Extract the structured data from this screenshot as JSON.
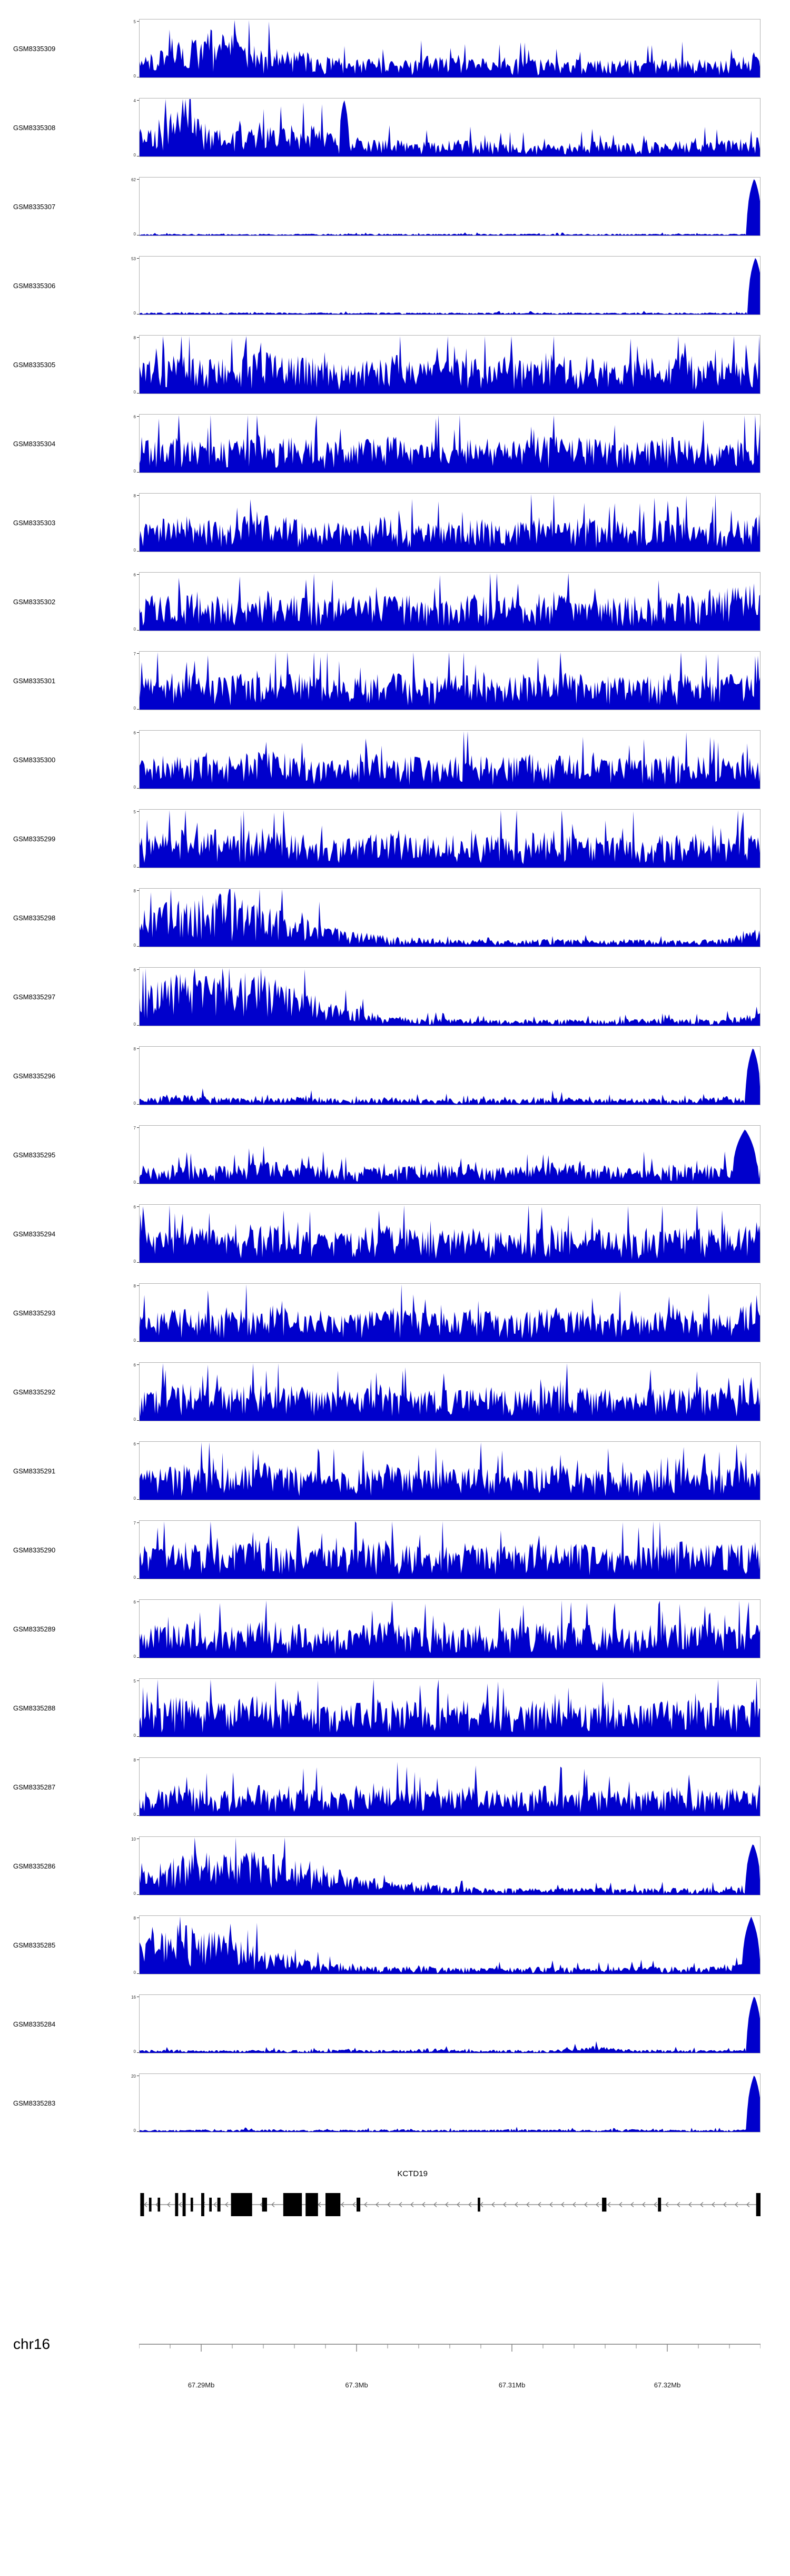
{
  "colors": {
    "signal": "#0000CC",
    "panel_border": "#b0b0b0",
    "yaxis_text": "#333333",
    "axis_line": "#808080",
    "tick_label": "#1a1a1a",
    "gene": "#000000",
    "intron": "#777777"
  },
  "chart_data": {
    "type": "area",
    "title": "",
    "description": "Genome browser coverage tracks for 27 GSM samples over chr16 67.29-67.32Mb with KCTD19 gene model",
    "region": {
      "chromosome": "chr16",
      "start_label": "67.29Mb",
      "end_label": "67.32Mb"
    },
    "x_axis": {
      "minor_tick_step": 0.05,
      "major_ticks": [
        {
          "pos": 0.1,
          "label": "67.29Mb"
        },
        {
          "pos": 0.35,
          "label": "67.3Mb"
        },
        {
          "pos": 0.6,
          "label": "67.31Mb"
        },
        {
          "pos": 0.85,
          "label": "67.32Mb"
        }
      ]
    },
    "gene_track": {
      "name": "KCTD19",
      "strand": "-",
      "exons": [
        {
          "x": 0.002,
          "w": 0.006,
          "h": 1
        },
        {
          "x": 0.016,
          "w": 0.004,
          "h": 0.6
        },
        {
          "x": 0.03,
          "w": 0.004,
          "h": 0.6
        },
        {
          "x": 0.058,
          "w": 0.005,
          "h": 1
        },
        {
          "x": 0.07,
          "w": 0.005,
          "h": 1
        },
        {
          "x": 0.083,
          "w": 0.004,
          "h": 0.6
        },
        {
          "x": 0.1,
          "w": 0.005,
          "h": 1
        },
        {
          "x": 0.113,
          "w": 0.004,
          "h": 0.6
        },
        {
          "x": 0.126,
          "w": 0.005,
          "h": 0.6
        },
        {
          "x": 0.148,
          "w": 0.034,
          "h": 1
        },
        {
          "x": 0.198,
          "w": 0.008,
          "h": 0.6
        },
        {
          "x": 0.232,
          "w": 0.03,
          "h": 1
        },
        {
          "x": 0.268,
          "w": 0.02,
          "h": 1
        },
        {
          "x": 0.3,
          "w": 0.024,
          "h": 1
        },
        {
          "x": 0.35,
          "w": 0.006,
          "h": 0.6
        },
        {
          "x": 0.545,
          "w": 0.004,
          "h": 0.6
        },
        {
          "x": 0.745,
          "w": 0.007,
          "h": 0.6
        },
        {
          "x": 0.835,
          "w": 0.005,
          "h": 0.6
        },
        {
          "x": 0.993,
          "w": 0.007,
          "h": 1
        }
      ]
    },
    "tracks": [
      {
        "label": "GSM8335309",
        "ymin": "0",
        "ymax": "5",
        "seed": 11,
        "envelope": [
          0.35,
          0.6,
          0.9,
          0.55,
          0.45,
          0.35,
          0.3,
          0.38,
          0.32,
          0.36,
          0.3,
          0.34,
          0.3,
          0.36,
          0.32,
          0.4
        ],
        "spikes": []
      },
      {
        "label": "GSM8335308",
        "ymin": "0",
        "ymax": "4",
        "seed": 12,
        "envelope": [
          0.55,
          0.85,
          0.45,
          0.5,
          0.6,
          0.35,
          0.3,
          0.28,
          0.32,
          0.25,
          0.22,
          0.28,
          0.24,
          0.3,
          0.28,
          0.34
        ],
        "spikes": [
          {
            "x": 0.33,
            "h": 1.0,
            "w": 0.008
          }
        ]
      },
      {
        "label": "GSM8335307",
        "ymin": "0",
        "ymax": "62",
        "seed": 13,
        "envelope": [
          0.03,
          0.03,
          0.03,
          0.03,
          0.03,
          0.03,
          0.03,
          0.03,
          0.03,
          0.03,
          0.03,
          0.03,
          0.03,
          0.03,
          0.03,
          0.03
        ],
        "spikes": [
          {
            "x": 0.99,
            "h": 1.0,
            "w": 0.012
          }
        ]
      },
      {
        "label": "GSM8335306",
        "ymin": "0",
        "ymax": "53",
        "seed": 14,
        "envelope": [
          0.035,
          0.035,
          0.035,
          0.035,
          0.035,
          0.035,
          0.035,
          0.035,
          0.035,
          0.035,
          0.035,
          0.035,
          0.035,
          0.035,
          0.035,
          0.035
        ],
        "spikes": [
          {
            "x": 0.992,
            "h": 1.0,
            "w": 0.012
          }
        ]
      },
      {
        "label": "GSM8335305",
        "ymin": "0",
        "ymax": "8",
        "seed": 15,
        "envelope": [
          0.6,
          0.72,
          0.62,
          0.75,
          0.65,
          0.6,
          0.72,
          0.58,
          0.66,
          0.62,
          0.7,
          0.64,
          0.6,
          0.68,
          0.64,
          0.72
        ],
        "spikes": []
      },
      {
        "label": "GSM8335304",
        "ymin": "0",
        "ymax": "6",
        "seed": 16,
        "envelope": [
          0.55,
          0.65,
          0.58,
          0.7,
          0.6,
          0.55,
          0.65,
          0.55,
          0.62,
          0.58,
          0.66,
          0.6,
          0.55,
          0.64,
          0.58,
          0.66
        ],
        "spikes": []
      },
      {
        "label": "GSM8335303",
        "ymin": "0",
        "ymax": "8",
        "seed": 17,
        "envelope": [
          0.5,
          0.66,
          0.52,
          0.7,
          0.56,
          0.5,
          0.64,
          0.52,
          0.6,
          0.54,
          0.64,
          0.56,
          0.52,
          0.62,
          0.56,
          0.66
        ],
        "spikes": []
      },
      {
        "label": "GSM8335302",
        "ymin": "0",
        "ymax": "6",
        "seed": 18,
        "envelope": [
          0.55,
          0.7,
          0.6,
          0.72,
          0.62,
          0.58,
          0.7,
          0.56,
          0.64,
          0.6,
          0.68,
          0.62,
          0.58,
          0.66,
          0.72,
          0.85
        ],
        "spikes": []
      },
      {
        "label": "GSM8335301",
        "ymin": "0",
        "ymax": "7",
        "seed": 19,
        "envelope": [
          0.58,
          0.7,
          0.6,
          0.74,
          0.62,
          0.56,
          0.68,
          0.56,
          0.64,
          0.58,
          0.68,
          0.6,
          0.56,
          0.66,
          0.6,
          0.68
        ],
        "spikes": []
      },
      {
        "label": "GSM8335300",
        "ymin": "0",
        "ymax": "6",
        "seed": 20,
        "envelope": [
          0.52,
          0.64,
          0.55,
          0.68,
          0.58,
          0.52,
          0.64,
          0.52,
          0.6,
          0.55,
          0.64,
          0.56,
          0.52,
          0.62,
          0.55,
          0.6
        ],
        "spikes": []
      },
      {
        "label": "GSM8335299",
        "ymin": "0",
        "ymax": "5",
        "seed": 21,
        "envelope": [
          0.55,
          0.68,
          0.58,
          0.7,
          0.6,
          0.55,
          0.66,
          0.54,
          0.62,
          0.57,
          0.66,
          0.58,
          0.54,
          0.64,
          0.58,
          0.64
        ],
        "spikes": []
      },
      {
        "label": "GSM8335298",
        "ymin": "0",
        "ymax": "8",
        "seed": 22,
        "envelope": [
          0.55,
          0.9,
          0.95,
          0.75,
          0.5,
          0.32,
          0.2,
          0.15,
          0.12,
          0.12,
          0.14,
          0.12,
          0.13,
          0.12,
          0.14,
          0.3
        ],
        "spikes": []
      },
      {
        "label": "GSM8335297",
        "ymin": "0",
        "ymax": "6",
        "seed": 23,
        "envelope": [
          0.65,
          0.95,
          0.85,
          0.9,
          0.6,
          0.35,
          0.18,
          0.14,
          0.12,
          0.11,
          0.12,
          0.11,
          0.12,
          0.13,
          0.12,
          0.25
        ],
        "spikes": []
      },
      {
        "label": "GSM8335296",
        "ymin": "0",
        "ymax": "8",
        "seed": 24,
        "envelope": [
          0.12,
          0.18,
          0.14,
          0.1,
          0.16,
          0.1,
          0.14,
          0.1,
          0.12,
          0.1,
          0.14,
          0.1,
          0.12,
          0.1,
          0.14,
          0.18
        ],
        "spikes": [
          {
            "x": 0.988,
            "h": 1.0,
            "w": 0.012
          }
        ]
      },
      {
        "label": "GSM8335295",
        "ymin": "0",
        "ymax": "7",
        "seed": 25,
        "envelope": [
          0.3,
          0.36,
          0.32,
          0.4,
          0.34,
          0.3,
          0.38,
          0.32,
          0.36,
          0.3,
          0.38,
          0.34,
          0.3,
          0.36,
          0.34,
          0.42
        ],
        "spikes": [
          {
            "x": 0.975,
            "h": 0.95,
            "w": 0.02
          }
        ]
      },
      {
        "label": "GSM8335294",
        "ymin": "0",
        "ymax": "6",
        "seed": 26,
        "envelope": [
          0.55,
          0.68,
          0.58,
          0.72,
          0.6,
          0.56,
          0.68,
          0.55,
          0.63,
          0.58,
          0.67,
          0.6,
          0.55,
          0.65,
          0.6,
          0.68
        ],
        "spikes": []
      },
      {
        "label": "GSM8335293",
        "ymin": "0",
        "ymax": "8",
        "seed": 27,
        "envelope": [
          0.45,
          0.6,
          0.5,
          0.68,
          0.52,
          0.46,
          0.62,
          0.5,
          0.58,
          0.5,
          0.62,
          0.52,
          0.48,
          0.6,
          0.55,
          0.75
        ],
        "spikes": []
      },
      {
        "label": "GSM8335292",
        "ymin": "0",
        "ymax": "6",
        "seed": 28,
        "envelope": [
          0.55,
          0.66,
          0.57,
          0.7,
          0.6,
          0.54,
          0.66,
          0.54,
          0.62,
          0.56,
          0.66,
          0.58,
          0.54,
          0.64,
          0.58,
          0.66
        ],
        "spikes": []
      },
      {
        "label": "GSM8335291",
        "ymin": "0",
        "ymax": "6",
        "seed": 29,
        "envelope": [
          0.5,
          0.64,
          0.54,
          0.68,
          0.56,
          0.5,
          0.64,
          0.52,
          0.6,
          0.54,
          0.64,
          0.55,
          0.5,
          0.62,
          0.56,
          0.64
        ],
        "spikes": []
      },
      {
        "label": "GSM8335290",
        "ymin": "0",
        "ymax": "7",
        "seed": 30,
        "envelope": [
          0.56,
          0.7,
          0.6,
          0.72,
          0.62,
          0.56,
          0.68,
          0.56,
          0.64,
          0.58,
          0.68,
          0.6,
          0.55,
          0.66,
          0.6,
          0.68
        ],
        "spikes": []
      },
      {
        "label": "GSM8335289",
        "ymin": "0",
        "ymax": "6",
        "seed": 31,
        "envelope": [
          0.52,
          0.66,
          0.55,
          0.68,
          0.58,
          0.52,
          0.66,
          0.53,
          0.6,
          0.55,
          0.65,
          0.57,
          0.52,
          0.63,
          0.57,
          0.64
        ],
        "spikes": []
      },
      {
        "label": "GSM8335288",
        "ymin": "0",
        "ymax": "5",
        "seed": 32,
        "envelope": [
          0.58,
          0.72,
          0.62,
          0.74,
          0.64,
          0.58,
          0.7,
          0.58,
          0.66,
          0.6,
          0.7,
          0.62,
          0.58,
          0.68,
          0.62,
          0.7
        ],
        "spikes": []
      },
      {
        "label": "GSM8335287",
        "ymin": "0",
        "ymax": "8",
        "seed": 33,
        "envelope": [
          0.42,
          0.55,
          0.45,
          0.58,
          0.48,
          0.42,
          0.55,
          0.44,
          0.52,
          0.46,
          0.55,
          0.48,
          0.44,
          0.53,
          0.48,
          0.56
        ],
        "spikes": []
      },
      {
        "label": "GSM8335286",
        "ymin": "0",
        "ymax": "10",
        "seed": 34,
        "envelope": [
          0.45,
          0.7,
          0.8,
          0.75,
          0.6,
          0.42,
          0.28,
          0.18,
          0.14,
          0.12,
          0.12,
          0.13,
          0.12,
          0.13,
          0.14,
          0.2
        ],
        "spikes": [
          {
            "x": 0.988,
            "h": 0.9,
            "w": 0.012
          }
        ]
      },
      {
        "label": "GSM8335285",
        "ymin": "0",
        "ymax": "8",
        "seed": 35,
        "envelope": [
          0.6,
          0.88,
          0.72,
          0.45,
          0.28,
          0.16,
          0.13,
          0.12,
          0.11,
          0.12,
          0.13,
          0.12,
          0.14,
          0.13,
          0.15,
          0.3
        ],
        "spikes": [
          {
            "x": 0.985,
            "h": 1.0,
            "w": 0.014
          }
        ]
      },
      {
        "label": "GSM8335284",
        "ymin": "0",
        "ymax": "16",
        "seed": 36,
        "envelope": [
          0.05,
          0.06,
          0.05,
          0.06,
          0.05,
          0.06,
          0.05,
          0.08,
          0.05,
          0.06,
          0.05,
          0.12,
          0.05,
          0.06,
          0.05,
          0.06
        ],
        "spikes": [
          {
            "x": 0.99,
            "h": 1.0,
            "w": 0.012
          }
        ]
      },
      {
        "label": "GSM8335283",
        "ymin": "0",
        "ymax": "20",
        "seed": 37,
        "envelope": [
          0.04,
          0.04,
          0.04,
          0.05,
          0.04,
          0.04,
          0.05,
          0.04,
          0.04,
          0.05,
          0.04,
          0.04,
          0.05,
          0.04,
          0.04,
          0.05
        ],
        "spikes": [
          {
            "x": 0.99,
            "h": 1.0,
            "w": 0.012
          }
        ]
      }
    ]
  }
}
